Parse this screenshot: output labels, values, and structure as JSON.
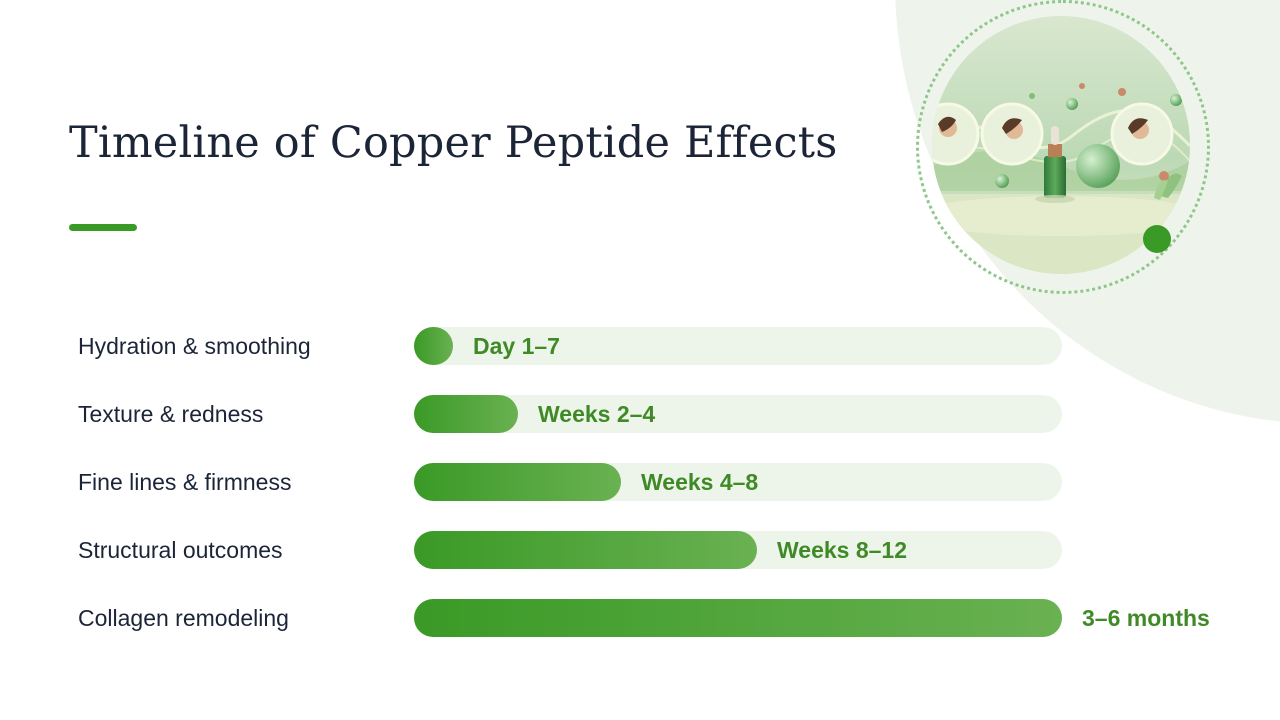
{
  "slide": {
    "title": "Timeline of Copper Peptide Effects",
    "accent_color": "#3a9a26",
    "image_description": "decorative-skincare-illustration"
  },
  "chart_data": {
    "type": "bar",
    "orientation": "horizontal",
    "title": "Timeline of Copper Peptide Effects",
    "categories": [
      "Hydration & smoothing",
      "Texture & redness",
      "Fine lines & firmness",
      "Structural outcomes",
      "Collagen remodeling"
    ],
    "values": [
      0.06,
      0.16,
      0.32,
      0.53,
      1.0
    ],
    "value_labels": [
      "Day 1–7",
      "Weeks 2–4",
      "Weeks 4–8",
      "Weeks 8–12",
      "3–6 months"
    ],
    "xlim": [
      0,
      1
    ],
    "grid": false,
    "legend": "none",
    "bar_color_start": "#3a9a26",
    "bar_color_end": "#6ab152",
    "track_color": "#edf5ea"
  }
}
